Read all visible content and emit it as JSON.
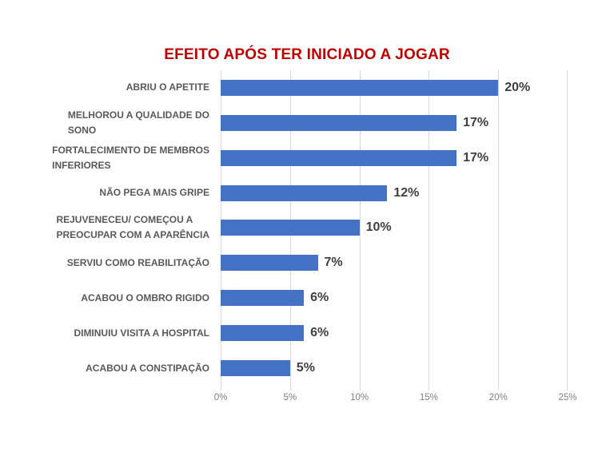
{
  "chart_data": {
    "type": "bar",
    "orientation": "horizontal",
    "title": "EFEITO APÓS TER INICIADO A JOGAR",
    "categories": [
      "ABRIU O APETITE",
      "MELHOROU A QUALIDADE DO\nSONO",
      "FORTALECIMENTO DE MEMBROS\nINFERIORES",
      "NÃO PEGA MAIS GRIPE",
      "REJUVENECEU/ COMEÇOU A\nPREOCUPAR COM A APARÊNCIA",
      "SERVIU COMO REABILITAÇÃO",
      "ACABOU O OMBRO RIGIDO",
      "DIMINUIU VISITA A HOSPITAL",
      "ACABOU A CONSTIPAÇÃO"
    ],
    "values": [
      20,
      17,
      17,
      12,
      10,
      7,
      6,
      6,
      5
    ],
    "data_labels": [
      "20%",
      "17%",
      "17%",
      "12%",
      "10%",
      "7%",
      "6%",
      "6%",
      "5%"
    ],
    "x_ticks": [
      "0%",
      "5%",
      "10%",
      "15%",
      "20%",
      "25%"
    ],
    "xlim": [
      0,
      25
    ],
    "xlabel": "",
    "ylabel": "",
    "grid": true,
    "legend": false
  },
  "colors": {
    "title": "#C00000",
    "bar": "#4472C4",
    "category_label": "#595959",
    "data_label": "#404040",
    "axis_label": "#808080",
    "gridline": "#D9D9D9"
  }
}
